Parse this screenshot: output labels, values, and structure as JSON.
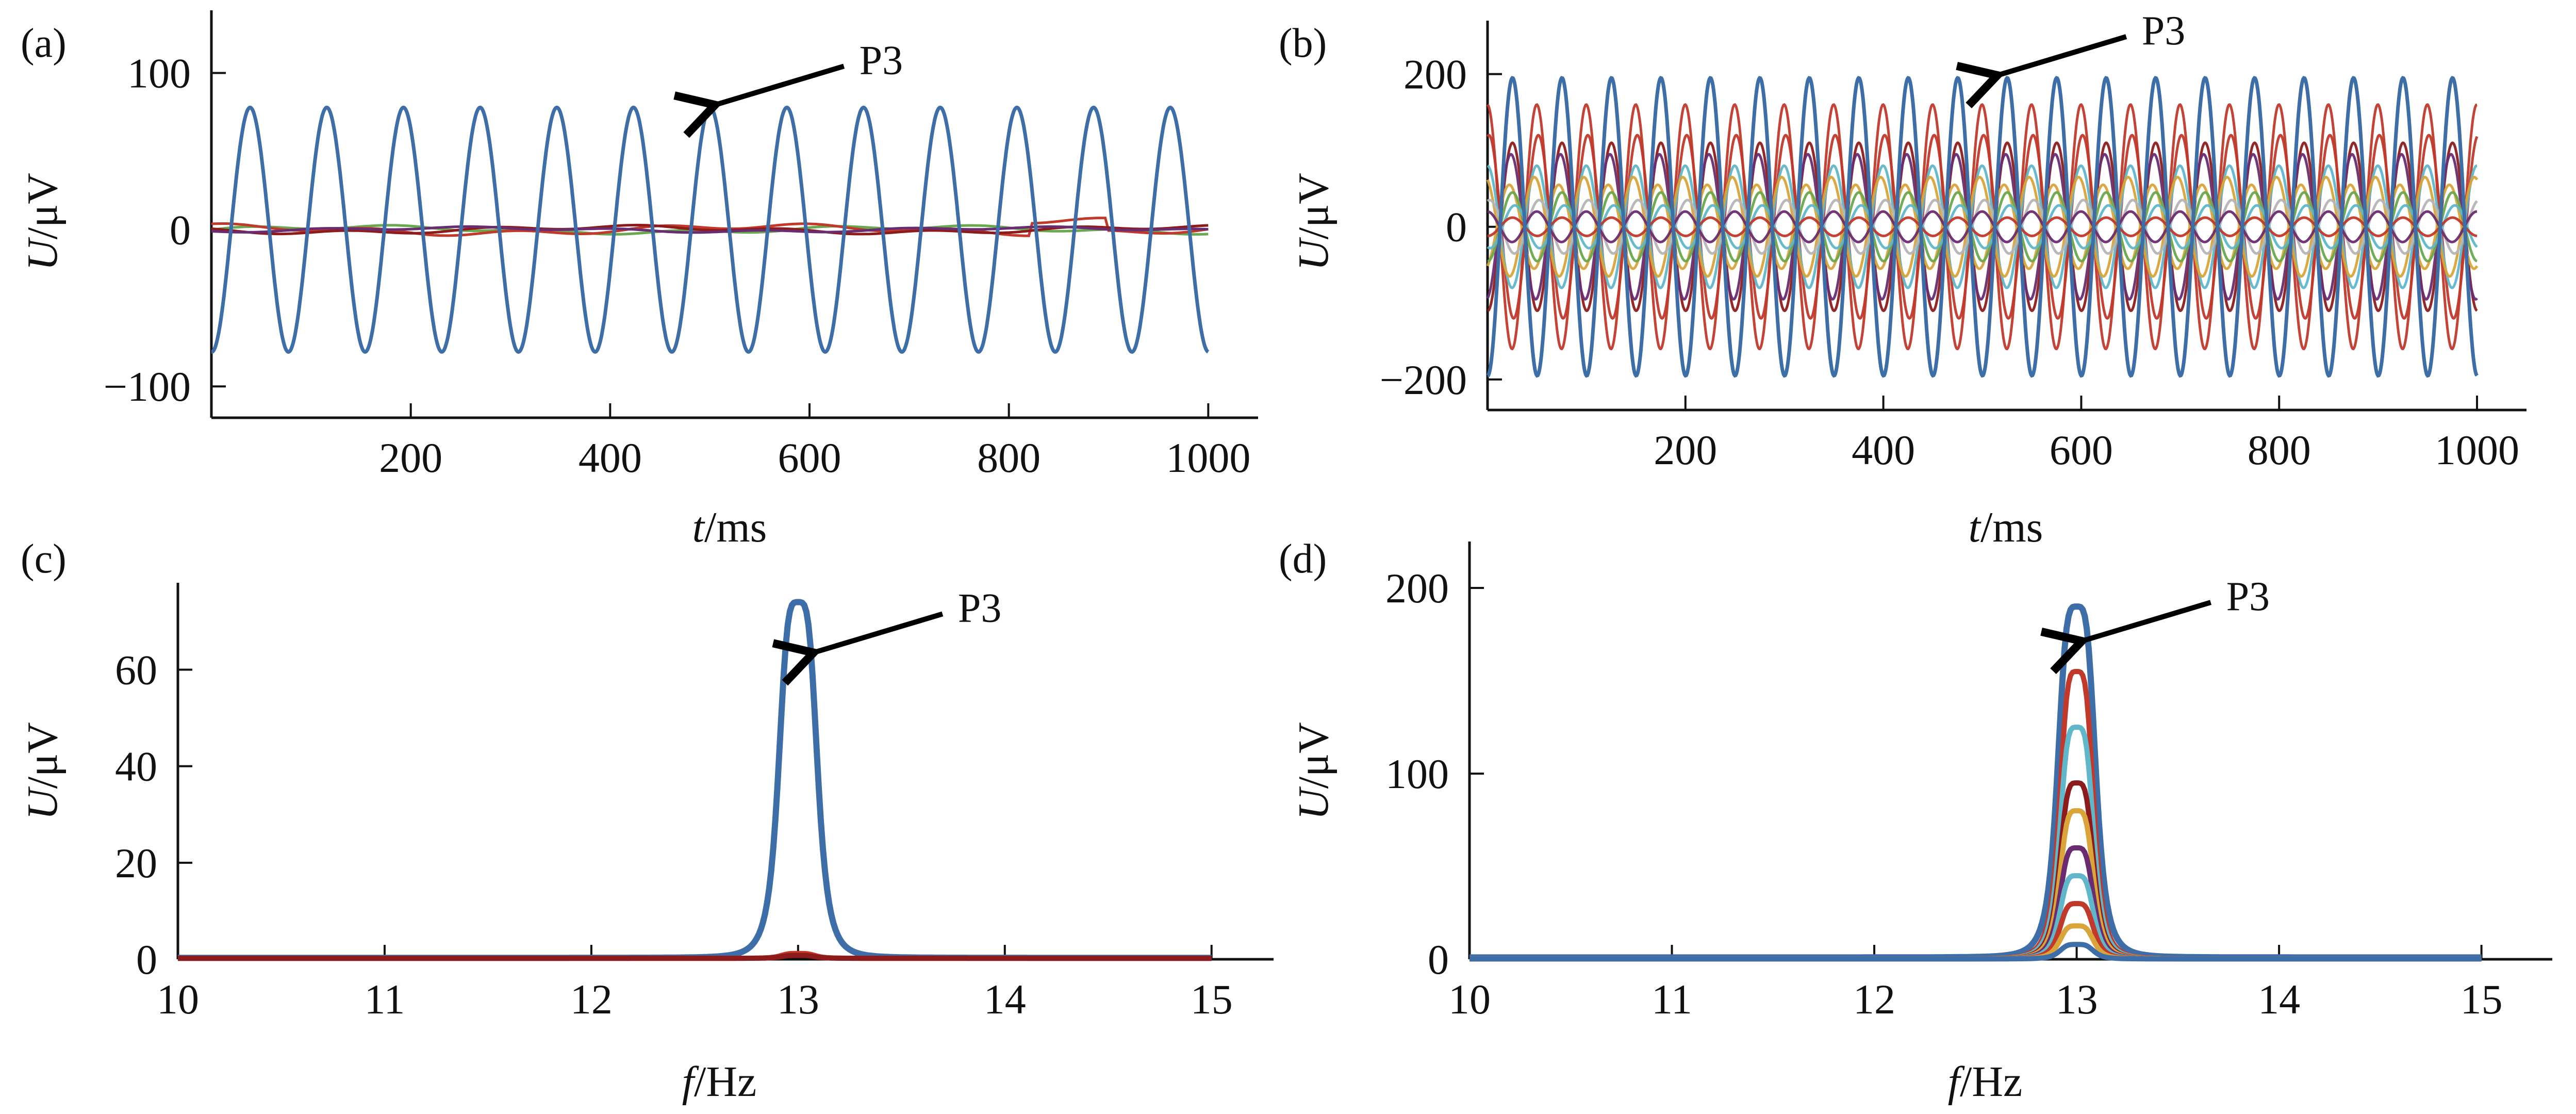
{
  "figure": {
    "colors": {
      "blue": "#3d6ea8",
      "red": "#c0392b",
      "orange": "#d9a43a",
      "green": "#6aa84f",
      "purple": "#6a2c70",
      "teal": "#5fb7c9",
      "darkred": "#8e1b1b",
      "gray": "#b5b5b5",
      "annotation": "#000000"
    }
  },
  "chart_data": [
    {
      "id": "a",
      "panel_label": "(a)",
      "type": "line",
      "xlabel_italic": "t",
      "xlabel_unit": "/ms",
      "ylabel_italic": "U",
      "ylabel_unit": "/μV",
      "xlim": [
        0,
        1050
      ],
      "ylim": [
        -120,
        140
      ],
      "xticks": [
        200,
        400,
        600,
        800,
        1000
      ],
      "yticks": [
        -100,
        0,
        100
      ],
      "ytick_labels": [
        "−100",
        "0",
        "100"
      ],
      "highlight": {
        "freq_hz": 13,
        "amplitude": 78,
        "phase": -1.6,
        "color": "blue"
      },
      "background_noise": [
        {
          "amplitude": 3,
          "color": "green"
        },
        {
          "amplitude": 4,
          "color": "red"
        },
        {
          "amplitude": 3,
          "color": "darkred"
        },
        {
          "amplitude": 2,
          "color": "purple"
        }
      ],
      "annotation": {
        "text": "P3",
        "x": 500,
        "y": 78
      }
    },
    {
      "id": "b",
      "panel_label": "(b)",
      "type": "line",
      "xlabel_italic": "t",
      "xlabel_unit": "/ms",
      "ylabel_italic": "U",
      "ylabel_unit": "/μV",
      "xlim": [
        0,
        1050
      ],
      "ylim": [
        -240,
        270
      ],
      "xticks": [
        200,
        400,
        600,
        800,
        1000
      ],
      "yticks": [
        -200,
        0,
        200
      ],
      "ytick_labels": [
        "−200",
        "0",
        "200"
      ],
      "highlight": {
        "freq_hz": 20,
        "amplitude": 195,
        "phase": -1.6,
        "color": "blue"
      },
      "series": [
        {
          "amplitude": 160,
          "phase": 1.6,
          "color": "red"
        },
        {
          "amplitude": 120,
          "phase": 1.4,
          "color": "red"
        },
        {
          "amplitude": 110,
          "phase": -1.6,
          "color": "darkred"
        },
        {
          "amplitude": 95,
          "phase": -1.4,
          "color": "purple"
        },
        {
          "amplitude": 80,
          "phase": 1.6,
          "color": "teal"
        },
        {
          "amplitude": 65,
          "phase": 1.9,
          "color": "orange"
        },
        {
          "amplitude": 55,
          "phase": -1.2,
          "color": "orange"
        },
        {
          "amplitude": 45,
          "phase": -1.6,
          "color": "green"
        },
        {
          "amplitude": 35,
          "phase": 1.3,
          "color": "gray"
        },
        {
          "amplitude": 28,
          "phase": -1.9,
          "color": "teal"
        },
        {
          "amplitude": 20,
          "phase": 1.6,
          "color": "purple"
        },
        {
          "amplitude": 12,
          "phase": -1.6,
          "color": "red"
        }
      ],
      "annotation": {
        "text": "P3",
        "x": 510,
        "y": 195
      }
    },
    {
      "id": "c",
      "panel_label": "(c)",
      "type": "line",
      "xlabel_italic": "f",
      "xlabel_unit": "/Hz",
      "ylabel_italic": "U",
      "ylabel_unit": "/μV",
      "xlim": [
        10,
        15.3
      ],
      "ylim": [
        0,
        78
      ],
      "xticks": [
        10,
        11,
        12,
        13,
        14,
        15
      ],
      "yticks": [
        0,
        20,
        40,
        60
      ],
      "peak_x": 13,
      "highlight": {
        "peak": 74,
        "base": 0.3,
        "width": 0.28,
        "color": "blue"
      },
      "series": [
        {
          "peak": 1.2,
          "color": "red"
        },
        {
          "peak": 0.8,
          "color": "darkred"
        }
      ],
      "annotation": {
        "text": "P3",
        "x": 13.05,
        "y": 63
      }
    },
    {
      "id": "d",
      "panel_label": "(d)",
      "type": "line",
      "xlabel_italic": "f",
      "xlabel_unit": "/Hz",
      "ylabel_italic": "U",
      "ylabel_unit": "/μV",
      "xlim": [
        10,
        15.35
      ],
      "ylim": [
        0,
        225
      ],
      "xticks": [
        10,
        11,
        12,
        13,
        14,
        15
      ],
      "yticks": [
        0,
        100,
        200
      ],
      "peak_x": 13,
      "highlight": {
        "peak": 190,
        "base": 1.0,
        "width": 0.28,
        "color": "blue"
      },
      "series": [
        {
          "peak": 155,
          "color": "red"
        },
        {
          "peak": 125,
          "color": "teal"
        },
        {
          "peak": 95,
          "color": "darkred"
        },
        {
          "peak": 80,
          "color": "orange"
        },
        {
          "peak": 60,
          "color": "purple"
        },
        {
          "peak": 45,
          "color": "teal"
        },
        {
          "peak": 30,
          "color": "red"
        },
        {
          "peak": 18,
          "color": "orange"
        },
        {
          "peak": 8,
          "color": "blue"
        }
      ],
      "annotation": {
        "text": "P3",
        "x": 13.0,
        "y": 170
      }
    }
  ]
}
